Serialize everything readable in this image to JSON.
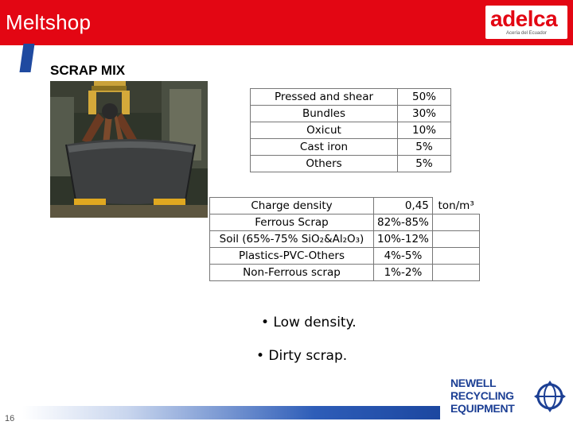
{
  "header": {
    "title": "Meltshop",
    "logo_main": "adelca",
    "logo_sub": "Acería del Ecuador"
  },
  "slide": {
    "title": "SCRAP MIX",
    "page_number": "16"
  },
  "scrap_mix": [
    {
      "label": "Pressed and shear",
      "value": "50%"
    },
    {
      "label": "Bundles",
      "value": "30%"
    },
    {
      "label": "Oxicut",
      "value": "10%"
    },
    {
      "label": "Cast iron",
      "value": "5%"
    },
    {
      "label": "Others",
      "value": "5%"
    }
  ],
  "charge": [
    {
      "label": "Charge density",
      "value": "0,45",
      "unit": "ton/m³"
    },
    {
      "label": "Ferrous Scrap",
      "value": "82%-85%",
      "unit": ""
    },
    {
      "label": "Soil (65%-75% SiO₂&Al₂O₃)",
      "value": "10%-12%",
      "unit": ""
    },
    {
      "label": "Plastics-PVC-Others",
      "value": "4%-5%",
      "unit": ""
    },
    {
      "label": "Non-Ferrous scrap",
      "value": "1%-2%",
      "unit": ""
    }
  ],
  "bullets": [
    "• Low density.",
    "• Dirty scrap."
  ],
  "partner": {
    "line1": "NEWELL",
    "line2": "RECYCLING",
    "line3": "EQUIPMENT"
  },
  "colors": {
    "header_red": "#e30613",
    "accent_blue": "#1f4aa0",
    "partner_blue": "#1c3f94"
  }
}
